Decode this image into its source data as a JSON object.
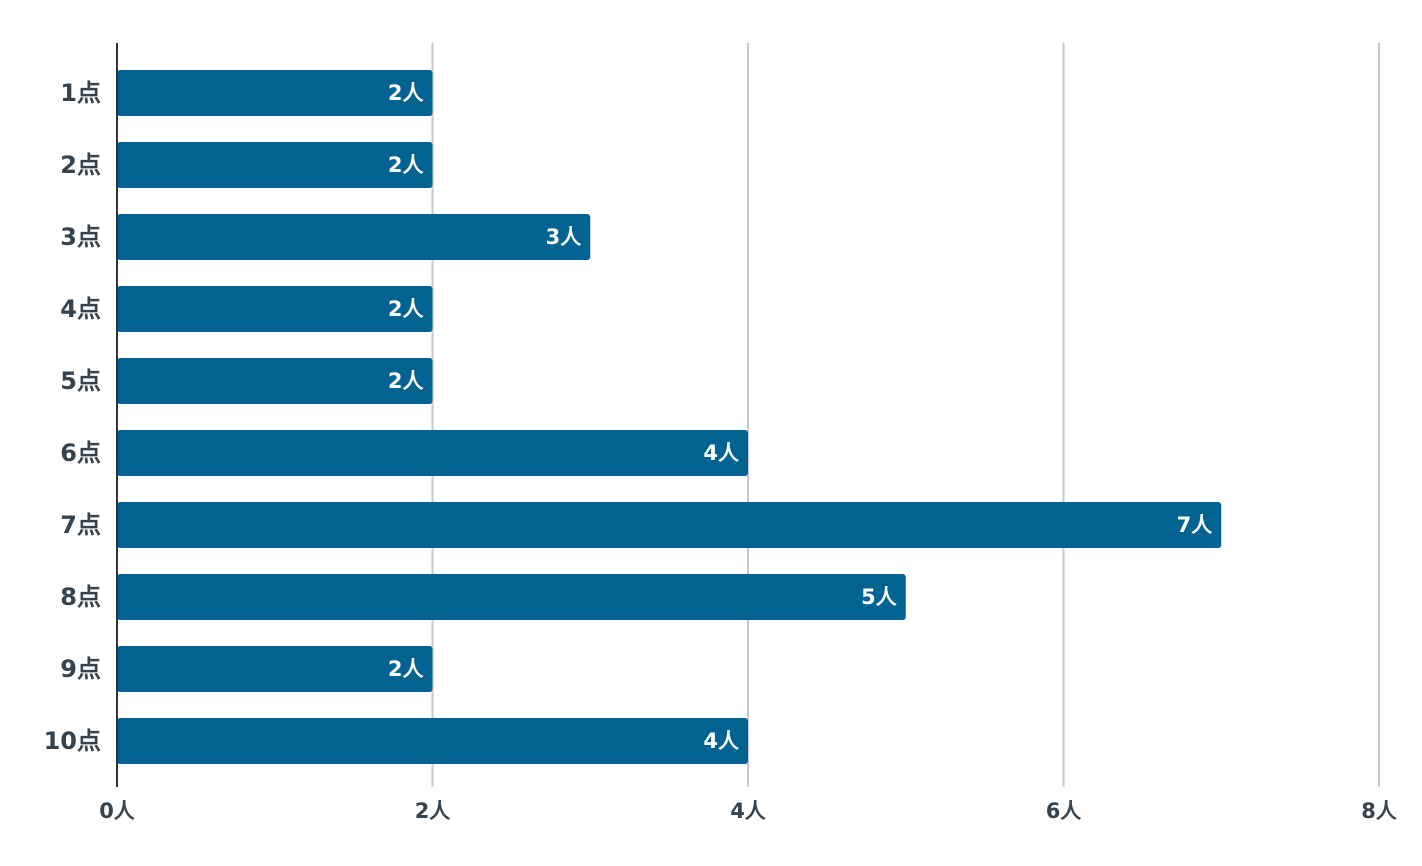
{
  "chart_data": {
    "type": "bar",
    "orientation": "horizontal",
    "categories": [
      "1点",
      "2点",
      "3点",
      "4点",
      "5点",
      "6点",
      "7点",
      "8点",
      "9点",
      "10点"
    ],
    "values": [
      2,
      2,
      3,
      2,
      2,
      4,
      7,
      5,
      2,
      4
    ],
    "data_labels": [
      "2人",
      "2人",
      "3人",
      "2人",
      "2人",
      "4人",
      "7人",
      "5人",
      "2人",
      "4人"
    ],
    "x_ticks": [
      0,
      2,
      4,
      6,
      8
    ],
    "x_tick_labels": [
      "0人",
      "2人",
      "4人",
      "6人",
      "8人"
    ],
    "xlim": [
      0,
      8
    ],
    "title": "",
    "xlabel": "",
    "ylabel": "",
    "grid": "vertical",
    "legend": "none",
    "colors": {
      "bar": "#006391",
      "grid": "#c8c8c8",
      "axis": "#333333",
      "text": "#35434e",
      "data_label": "#ffffff"
    }
  }
}
